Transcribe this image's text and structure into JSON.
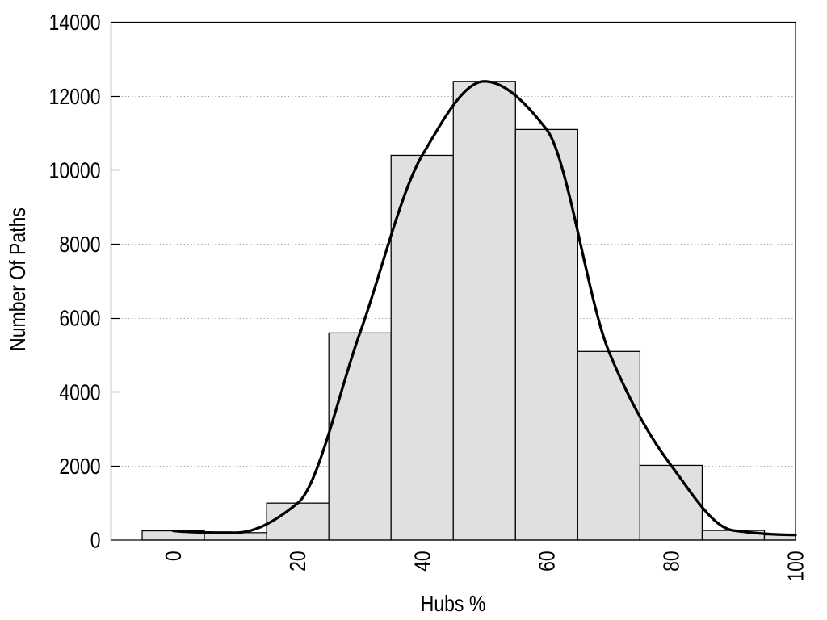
{
  "chart_data": {
    "type": "bar",
    "subtype": "histogram-with-smooth-curve",
    "title": "",
    "xlabel": "Hubs %",
    "ylabel": "Number Of Paths",
    "xlim": [
      -10,
      100
    ],
    "ylim": [
      0,
      14000
    ],
    "xticks": [
      0,
      20,
      40,
      60,
      80,
      100
    ],
    "yticks": [
      0,
      2000,
      4000,
      6000,
      8000,
      10000,
      12000,
      14000
    ],
    "grid": {
      "horizontal_dotted_at": [
        2000,
        4000,
        6000,
        8000,
        10000,
        12000
      ],
      "vertical": false
    },
    "legend": null,
    "bin_width": 10,
    "categories": [
      0,
      10,
      20,
      30,
      40,
      50,
      60,
      70,
      80,
      90,
      100
    ],
    "values": [
      250,
      200,
      1000,
      5600,
      10400,
      12400,
      11100,
      5100,
      2020,
      260,
      140
    ],
    "curve": {
      "kind": "monotone-cubic-spline",
      "x": [
        0,
        10,
        20,
        30,
        40,
        50,
        60,
        70,
        80,
        90,
        100
      ],
      "y": [
        250,
        200,
        1000,
        5600,
        10400,
        12400,
        11100,
        5100,
        2020,
        260,
        140
      ]
    },
    "colors": {
      "background": "#ffffff",
      "bar_fill": "#e0e0e0",
      "bar_border": "#000000",
      "curve": "#000000",
      "grid": "#999999",
      "axis": "#000000",
      "text": "#000000"
    }
  }
}
